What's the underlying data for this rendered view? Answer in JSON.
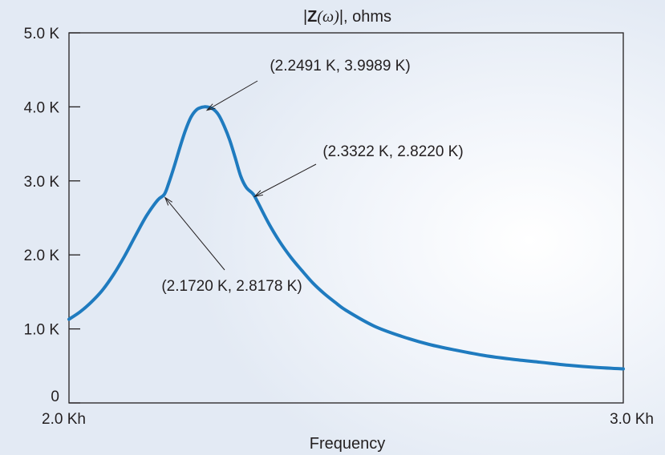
{
  "chart_data": {
    "type": "line",
    "title": {
      "bar_left": "|",
      "z": "Z",
      "omega_paren": "(ω)",
      "bar_right": "|",
      "units": ", ohms"
    },
    "xlabel": "Frequency",
    "ylabel": "",
    "xlim": [
      2.0,
      3.0
    ],
    "ylim": [
      0,
      5.0
    ],
    "x_ticks": [
      {
        "value": 2.0,
        "label": "2.0 Kh"
      },
      {
        "value": 3.0,
        "label": "3.0 Kh"
      }
    ],
    "y_ticks": [
      {
        "value": 0,
        "label": "0"
      },
      {
        "value": 1.0,
        "label": "1.0 K"
      },
      {
        "value": 2.0,
        "label": "2.0 K"
      },
      {
        "value": 3.0,
        "label": "3.0 K"
      },
      {
        "value": 4.0,
        "label": "4.0 K"
      },
      {
        "value": 5.0,
        "label": "5.0 K"
      }
    ],
    "series": [
      {
        "color": "#1f7bbf",
        "x": [
          2.0,
          2.02,
          2.04,
          2.06,
          2.08,
          2.1,
          2.12,
          2.14,
          2.16,
          2.172,
          2.18,
          2.19,
          2.2,
          2.21,
          2.22,
          2.23,
          2.24,
          2.2491,
          2.26,
          2.27,
          2.28,
          2.29,
          2.3,
          2.31,
          2.32,
          2.3322,
          2.34,
          2.36,
          2.38,
          2.4,
          2.42,
          2.44,
          2.46,
          2.48,
          2.5,
          2.55,
          2.6,
          2.65,
          2.7,
          2.75,
          2.8,
          2.85,
          2.9,
          2.95,
          3.0
        ],
        "y": [
          1.13,
          1.23,
          1.36,
          1.52,
          1.73,
          1.98,
          2.26,
          2.53,
          2.74,
          2.8178,
          2.97,
          3.2,
          3.45,
          3.68,
          3.86,
          3.96,
          3.995,
          3.9989,
          3.97,
          3.89,
          3.74,
          3.55,
          3.31,
          3.06,
          2.91,
          2.822,
          2.72,
          2.43,
          2.18,
          1.97,
          1.79,
          1.62,
          1.48,
          1.36,
          1.25,
          1.04,
          0.9,
          0.79,
          0.71,
          0.64,
          0.59,
          0.55,
          0.51,
          0.48,
          0.46
        ]
      }
    ],
    "annotations": [
      {
        "text": "(2.2491 K, 3.9989 K)",
        "x": 2.2491,
        "y": 3.9989
      },
      {
        "text": "(2.3322 K, 2.8220 K)",
        "x": 2.3322,
        "y": 2.822
      },
      {
        "text": "(2.1720 K, 2.8178 K)",
        "x": 2.172,
        "y": 2.8178
      }
    ],
    "grid": false,
    "legend": "none"
  }
}
